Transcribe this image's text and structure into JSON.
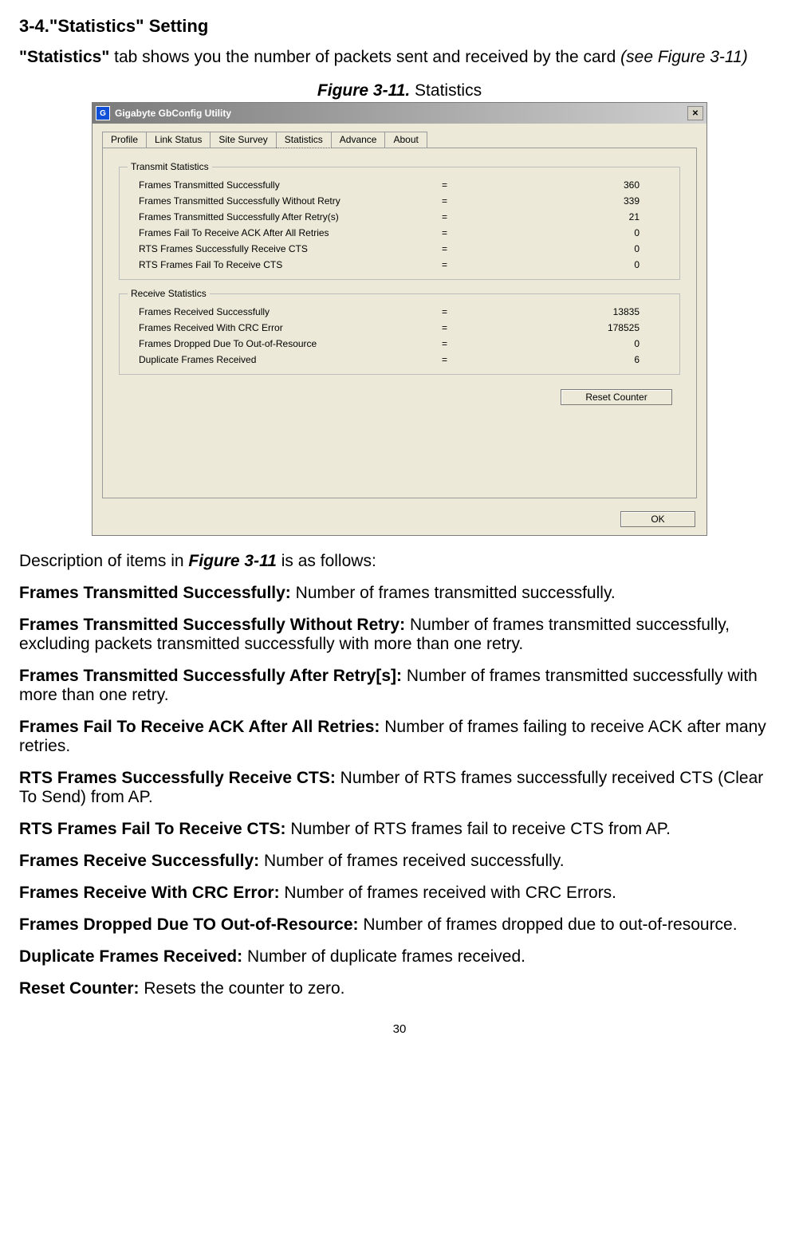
{
  "section_heading": "3-4.\"Statistics\" Setting",
  "intro_bold_lead": "\"Statistics\"",
  "intro_rest": " tab shows you the number of packets sent and received by the card ",
  "intro_ref": "(see Figure 3-11)",
  "figure_label": "Figure 3-11.",
  "figure_title": "   Statistics",
  "window": {
    "title": "Gigabyte GbConfig Utility",
    "tabs": [
      "Profile",
      "Link Status",
      "Site Survey",
      "Statistics",
      "Advance",
      "About"
    ],
    "active_tab_index": 3,
    "transmit_legend": "Transmit Statistics",
    "receive_legend": "Receive Statistics",
    "transmit": [
      {
        "label": "Frames Transmitted Successfully",
        "value": "360"
      },
      {
        "label": "Frames Transmitted Successfully  Without Retry",
        "value": "339"
      },
      {
        "label": "Frames Transmitted Successfully After Retry(s)",
        "value": "21"
      },
      {
        "label": "Frames Fail To Receive ACK After All Retries",
        "value": "0"
      },
      {
        "label": "RTS Frames Successfully Receive CTS",
        "value": "0"
      },
      {
        "label": "RTS Frames Fail To Receive CTS",
        "value": "0"
      }
    ],
    "receive": [
      {
        "label": "Frames Received Successfully",
        "value": "13835"
      },
      {
        "label": "Frames Received With CRC Error",
        "value": "178525"
      },
      {
        "label": "Frames Dropped Due To Out-of-Resource",
        "value": "0"
      },
      {
        "label": "Duplicate Frames Received",
        "value": "6"
      }
    ],
    "reset_label": "Reset Counter",
    "ok_label": "OK"
  },
  "descriptions": {
    "lead_prefix": "Description of items in ",
    "lead_ref": "Figure 3-11",
    "lead_suffix": " is as follows:",
    "items": [
      {
        "term": "Frames Transmitted Successfully:",
        "desc": " Number of frames transmitted successfully."
      },
      {
        "term": "Frames Transmitted Successfully Without Retry:",
        "desc": " Number of frames transmitted successfully, excluding packets transmitted successfully with more than one retry."
      },
      {
        "term": "Frames Transmitted Successfully After Retry[s]:",
        "desc": " Number of frames transmitted successfully with more than one retry."
      },
      {
        "term": "Frames Fail To Receive ACK After All Retries:",
        "desc": " Number of frames failing to receive ACK after many retries."
      },
      {
        "term": "RTS Frames Successfully Receive CTS:",
        "desc": " Number of RTS frames successfully received CTS (Clear To Send) from AP."
      },
      {
        "term": "RTS Frames Fail To Receive CTS:",
        "desc": " Number of RTS frames fail to receive CTS from AP."
      },
      {
        "term": "Frames Receive Successfully:",
        "desc": " Number of frames received successfully."
      },
      {
        "term": "Frames Receive With CRC Error:",
        "desc": " Number of frames received with CRC Errors."
      },
      {
        "term": "Frames Dropped Due TO Out-of-Resource:",
        "desc": " Number of frames dropped due to out-of-resource."
      },
      {
        "term": "Duplicate Frames Received:",
        "desc": " Number of duplicate frames received."
      },
      {
        "term": "Reset Counter:",
        "desc": " Resets the counter to zero."
      }
    ]
  },
  "page_number": "30"
}
